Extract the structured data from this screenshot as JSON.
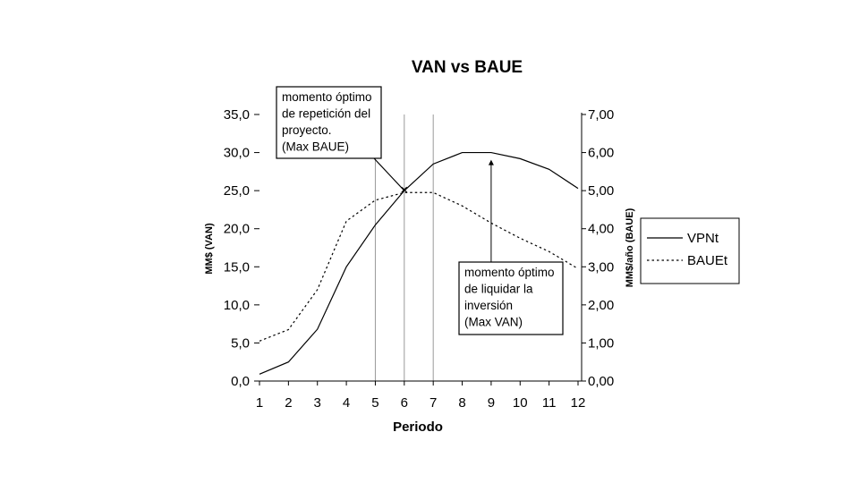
{
  "chart_data": {
    "type": "line",
    "title": "VAN vs BAUE",
    "xlabel": "Periodo",
    "ylabel_left": "MM$ (VAN)",
    "ylabel_right": "MM$/año (BAUE)",
    "x": [
      1,
      2,
      3,
      4,
      5,
      6,
      7,
      8,
      9,
      10,
      11,
      12
    ],
    "y_left_ticks": [
      "0,0",
      "5,0",
      "10,0",
      "15,0",
      "20,0",
      "25,0",
      "30,0",
      "35,0"
    ],
    "y_right_ticks": [
      "0,00",
      "1,00",
      "2,00",
      "3,00",
      "4,00",
      "5,00",
      "6,00",
      "7,00"
    ],
    "ylim_left": [
      0,
      35
    ],
    "ylim_right": [
      0,
      7
    ],
    "vertical_gridlines_at": [
      5,
      6,
      7
    ],
    "series": [
      {
        "name": "VPNt",
        "axis": "left",
        "style": "solid",
        "values": [
          0.9,
          2.5,
          6.8,
          15.0,
          20.5,
          25.0,
          28.5,
          30.0,
          30.0,
          29.2,
          27.8,
          25.3
        ]
      },
      {
        "name": "BAUEt",
        "axis": "right",
        "style": "dotted",
        "values": [
          1.05,
          1.35,
          2.4,
          4.2,
          4.75,
          4.95,
          4.95,
          4.6,
          4.15,
          3.75,
          3.4,
          2.95
        ]
      }
    ],
    "annotations": [
      {
        "lines": [
          "momento óptimo",
          "de repetición del",
          "proyecto.",
          "(Max BAUE)"
        ],
        "points_to_x": 6
      },
      {
        "lines": [
          "momento óptimo",
          "de liquidar la",
          " inversión",
          "(Max VAN)"
        ],
        "points_to_x": 9
      }
    ],
    "legend_placement": "right"
  }
}
